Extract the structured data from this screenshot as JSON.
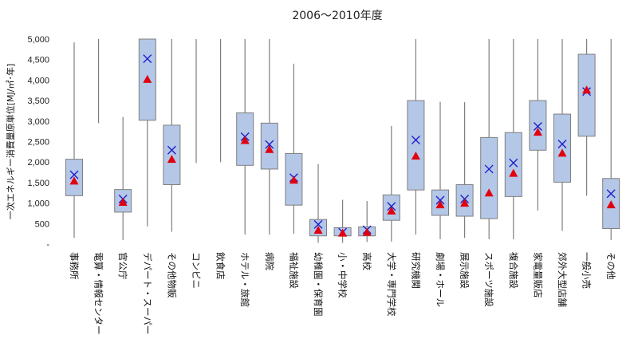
{
  "chart_data": {
    "type": "boxplot",
    "title": "2006〜2010年度",
    "ylabel": "一次エネルギー消費量原単位[MJ/㎡･年]",
    "xlabel": "",
    "ylim": [
      0,
      5000
    ],
    "yticks": [
      0,
      500,
      1000,
      1500,
      2000,
      2500,
      3000,
      3500,
      4000,
      4500,
      5000
    ],
    "ytick_labels": [
      "-",
      "500",
      "1,000",
      "1,500",
      "2,000",
      "2,500",
      "3,000",
      "3,500",
      "4,000",
      "4,500",
      "5,000"
    ],
    "grid": false,
    "colors": {
      "box_fill": "#b4c7e7",
      "box_edge": "#7f7f7f",
      "mean_x": "#1f1fcc",
      "median_marker": "#e0000f"
    },
    "categories": [
      "事務所",
      "電算・情報センター",
      "官公庁",
      "デパート・スーパー",
      "その他物販",
      "コンビニ",
      "飲食店",
      "ホテル・旅館",
      "病院",
      "福祉施設",
      "幼稚園・保育園",
      "小・中学校",
      "高校",
      "大学・専門学校",
      "研究機関",
      "劇場・ホール",
      "展示施設",
      "スポーツ施設",
      "複合施設",
      "家電量販店",
      "郊外大型店舗",
      "一般小売",
      "その他"
    ],
    "series": [
      {
        "category": "事務所",
        "min": 150,
        "q1": 1180,
        "q3": 2070,
        "max": 4920,
        "mean": 1690,
        "median": 1550
      },
      {
        "category": "電算・情報センター",
        "min": 2950,
        "max": 5000
      },
      {
        "category": "官公庁",
        "min": 100,
        "q1": 780,
        "q3": 1330,
        "max": 3100,
        "mean": 1100,
        "median": 1030
      },
      {
        "category": "デパート・スーパー",
        "min": 430,
        "q1": 3020,
        "q3": 5000,
        "max": 5000,
        "mean": 4520,
        "median": 4030
      },
      {
        "category": "その他物販",
        "min": 300,
        "q1": 1450,
        "q3": 2900,
        "max": 5000,
        "mean": 2290,
        "median": 2080
      },
      {
        "category": "コンビニ",
        "min": 1980,
        "max": 5000
      },
      {
        "category": "飲食店",
        "min": 2000,
        "max": 5000
      },
      {
        "category": "ホテル・旅館",
        "min": 230,
        "q1": 1920,
        "q3": 3200,
        "max": 5000,
        "mean": 2620,
        "median": 2540
      },
      {
        "category": "病院",
        "min": 230,
        "q1": 1830,
        "q3": 2950,
        "max": 5000,
        "mean": 2430,
        "median": 2320
      },
      {
        "category": "福祉施設",
        "min": 250,
        "q1": 950,
        "q3": 2210,
        "max": 4400,
        "mean": 1620,
        "median": 1570
      },
      {
        "category": "幼稚園・保育園",
        "min": 30,
        "q1": 200,
        "q3": 600,
        "max": 1950,
        "mean": 480,
        "median": 350
      },
      {
        "category": "小・中学校",
        "min": 30,
        "q1": 200,
        "q3": 400,
        "max": 1080,
        "mean": 290,
        "median": 280
      },
      {
        "category": "高校",
        "min": 50,
        "q1": 200,
        "q3": 420,
        "max": 1050,
        "mean": 350,
        "median": 300
      },
      {
        "category": "大学・専門学校",
        "min": 60,
        "q1": 580,
        "q3": 1200,
        "max": 2880,
        "mean": 920,
        "median": 820
      },
      {
        "category": "研究機関",
        "min": 230,
        "q1": 1320,
        "q3": 3500,
        "max": 5000,
        "mean": 2540,
        "median": 2160
      },
      {
        "category": "劇場・ホール",
        "min": 120,
        "q1": 700,
        "q3": 1320,
        "max": 3470,
        "mean": 1070,
        "median": 970
      },
      {
        "category": "展示施設",
        "min": 150,
        "q1": 680,
        "q3": 1450,
        "max": 3460,
        "mean": 1100,
        "median": 1010
      },
      {
        "category": "スポーツ施設",
        "min": 120,
        "q1": 620,
        "q3": 2600,
        "max": 5000,
        "mean": 1830,
        "median": 1260
      },
      {
        "category": "複合施設",
        "min": 120,
        "q1": 1160,
        "q3": 2720,
        "max": 5000,
        "mean": 1980,
        "median": 1740
      },
      {
        "category": "家電量販店",
        "min": 820,
        "q1": 2290,
        "q3": 3500,
        "max": 5000,
        "mean": 2870,
        "median": 2740
      },
      {
        "category": "郊外大型店舗",
        "min": 320,
        "q1": 1510,
        "q3": 3170,
        "max": 5000,
        "mean": 2440,
        "median": 2230
      },
      {
        "category": "一般小売",
        "min": 1180,
        "q1": 2630,
        "q3": 4630,
        "max": 5000,
        "mean": 3720,
        "median": 3770
      },
      {
        "category": "その他",
        "min": 100,
        "q1": 380,
        "q3": 1600,
        "max": 5000,
        "mean": 1230,
        "median": 970
      }
    ],
    "markers": {
      "mean": "x",
      "median": "triangle"
    }
  }
}
